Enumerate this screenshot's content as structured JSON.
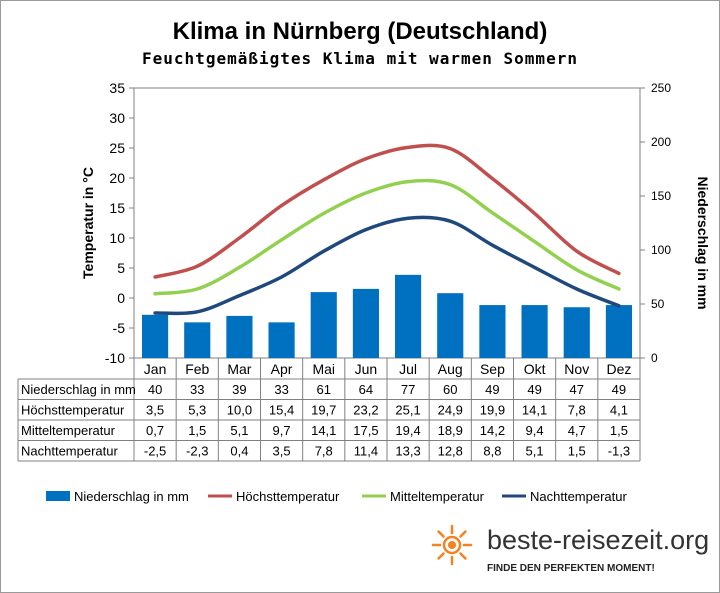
{
  "title": "Klima in Nürnberg (Deutschland)",
  "subtitle": "Feuchtgemäßigtes Klima mit warmen Sommern",
  "chart_data": {
    "type": "bar+line",
    "categories": [
      "Jan",
      "Feb",
      "Mar",
      "Apr",
      "Mai",
      "Jun",
      "Jul",
      "Aug",
      "Sep",
      "Okt",
      "Nov",
      "Dez"
    ],
    "y_left": {
      "label": "Temperatur in °C",
      "lim": [
        -10,
        35
      ],
      "ticks": [
        -10,
        -5,
        0,
        5,
        10,
        15,
        20,
        25,
        30,
        35
      ]
    },
    "y_right": {
      "label": "Niederschlag in mm",
      "lim": [
        0,
        250
      ],
      "ticks": [
        0,
        50,
        100,
        150,
        200,
        250
      ]
    },
    "grid": false,
    "legend_position": "bottom",
    "series": [
      {
        "name": "Niederschlag in mm",
        "type": "bar",
        "axis": "right",
        "color": "#0070C0",
        "values": [
          40,
          33,
          39,
          33,
          61,
          64,
          77,
          60,
          49,
          49,
          47,
          49
        ],
        "labels": [
          "40",
          "33",
          "39",
          "33",
          "61",
          "64",
          "77",
          "60",
          "49",
          "49",
          "47",
          "49"
        ]
      },
      {
        "name": "Höchsttemperatur",
        "type": "line",
        "axis": "left",
        "color": "#C0504D",
        "values": [
          3.5,
          5.3,
          10.0,
          15.4,
          19.7,
          23.2,
          25.1,
          24.9,
          19.9,
          14.1,
          7.8,
          4.1
        ],
        "labels": [
          "3,5",
          "5,3",
          "10,0",
          "15,4",
          "19,7",
          "23,2",
          "25,1",
          "24,9",
          "19,9",
          "14,1",
          "7,8",
          "4,1"
        ]
      },
      {
        "name": "Mitteltemperatur",
        "type": "line",
        "axis": "left",
        "color": "#92D050",
        "values": [
          0.7,
          1.5,
          5.1,
          9.7,
          14.1,
          17.5,
          19.4,
          18.9,
          14.2,
          9.4,
          4.7,
          1.5
        ],
        "labels": [
          "0,7",
          "1,5",
          "5,1",
          "9,7",
          "14,1",
          "17,5",
          "19,4",
          "18,9",
          "14,2",
          "9,4",
          "4,7",
          "1,5"
        ]
      },
      {
        "name": "Nachttemperatur",
        "type": "line",
        "axis": "left",
        "color": "#1F497D",
        "values": [
          -2.5,
          -2.3,
          0.4,
          3.5,
          7.8,
          11.4,
          13.3,
          12.8,
          8.8,
          5.1,
          1.5,
          -1.3
        ],
        "labels": [
          "-2,5",
          "-2,3",
          "0,4",
          "3,5",
          "7,8",
          "11,4",
          "13,3",
          "12,8",
          "8,8",
          "5,1",
          "1,5",
          "-1,3"
        ]
      }
    ]
  },
  "logo": {
    "name": "beste-reisezeit.org",
    "tagline": "FINDE DEN PERFEKTEN MOMENT!",
    "color": "#F58220"
  }
}
